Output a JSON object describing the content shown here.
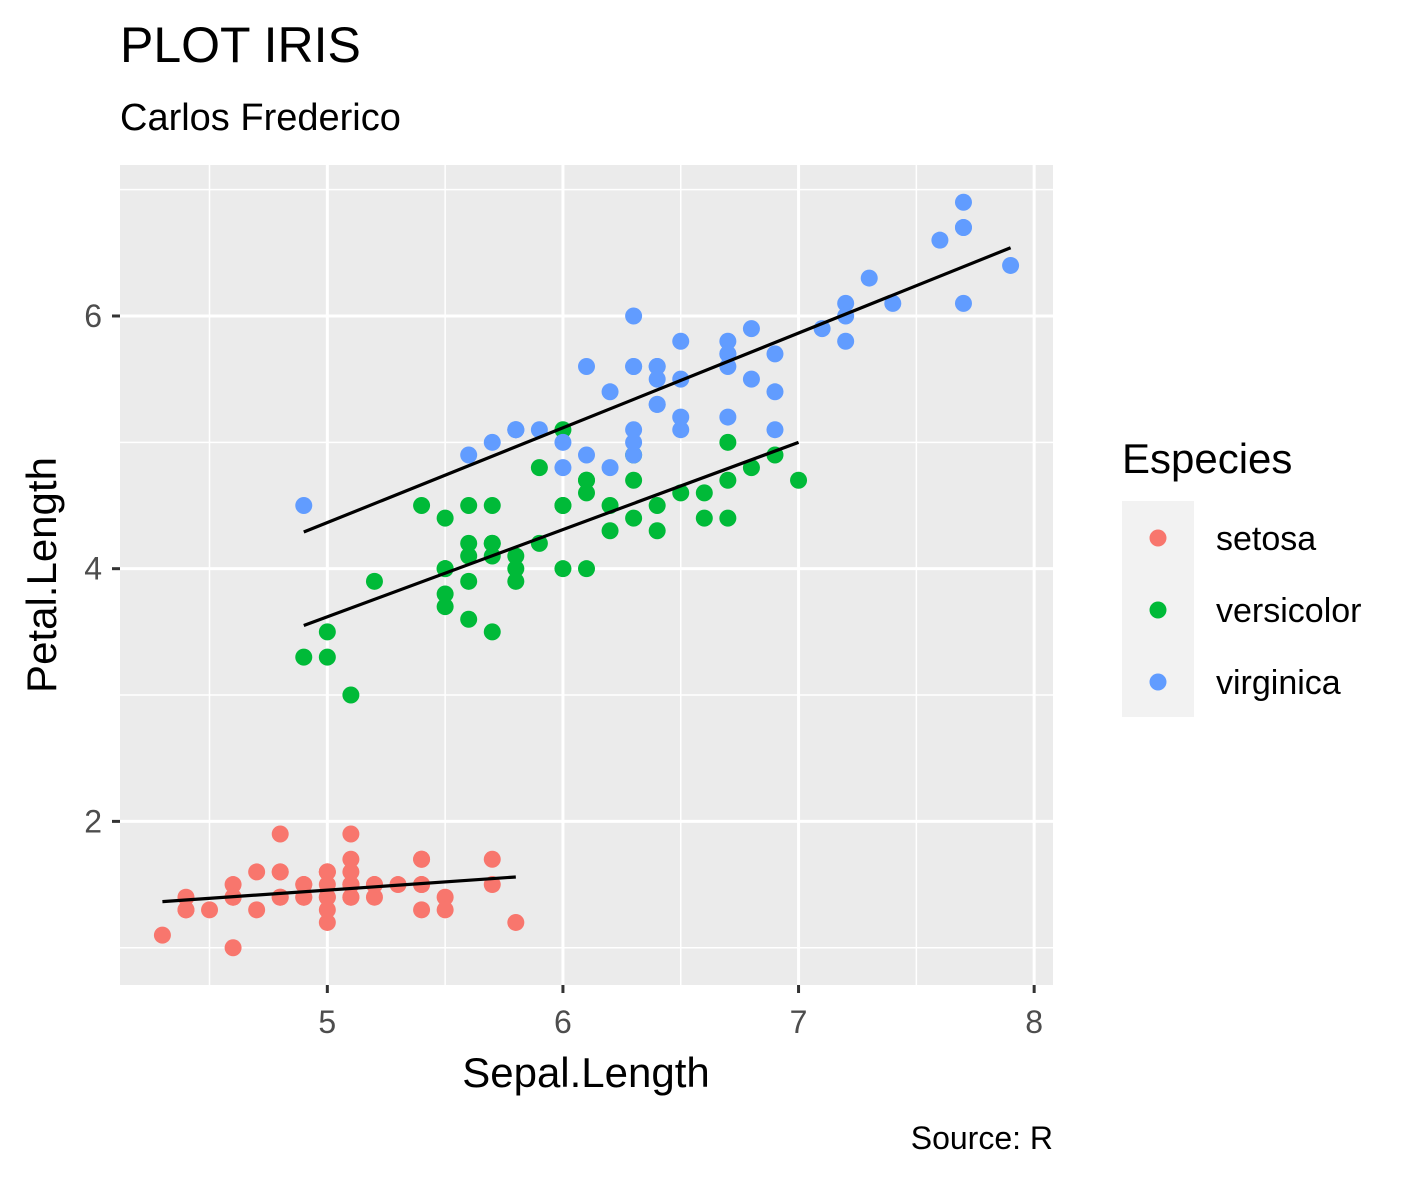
{
  "chart_data": {
    "type": "scatter",
    "title": "PLOT IRIS",
    "subtitle": "Carlos Frederico",
    "caption": "Source: R",
    "xlabel": "Sepal.Length",
    "ylabel": "Petal.Length",
    "xlim": [
      4.12,
      8.08
    ],
    "ylim": [
      0.705,
      7.195
    ],
    "x_ticks": [
      5,
      6,
      7,
      8
    ],
    "y_ticks": [
      2,
      4,
      6
    ],
    "x_minor": [
      4.5,
      5.5,
      6.5,
      7.5
    ],
    "y_minor": [
      1,
      3,
      5,
      7
    ],
    "grid": true,
    "panel_background": "#ebebeb",
    "legend": {
      "title": "Especies",
      "position": "right"
    },
    "series": [
      {
        "name": "setosa",
        "color": "#F8766D",
        "x": [
          5.1,
          4.9,
          4.7,
          4.6,
          5.0,
          5.4,
          4.6,
          5.0,
          4.4,
          4.9,
          5.4,
          4.8,
          4.8,
          4.3,
          5.8,
          5.7,
          5.4,
          5.1,
          5.7,
          5.1,
          5.4,
          5.1,
          4.6,
          5.1,
          4.8,
          5.0,
          5.0,
          5.2,
          5.2,
          4.7,
          4.8,
          5.4,
          5.2,
          5.5,
          4.9,
          5.0,
          5.5,
          4.9,
          4.4,
          5.1,
          5.0,
          4.5,
          4.4,
          5.0,
          5.1,
          4.8,
          5.1,
          4.6,
          5.3,
          5.0
        ],
        "y": [
          1.4,
          1.4,
          1.3,
          1.5,
          1.4,
          1.7,
          1.4,
          1.5,
          1.4,
          1.5,
          1.5,
          1.6,
          1.4,
          1.1,
          1.2,
          1.5,
          1.3,
          1.4,
          1.7,
          1.5,
          1.7,
          1.5,
          1.0,
          1.7,
          1.9,
          1.6,
          1.6,
          1.5,
          1.4,
          1.6,
          1.6,
          1.5,
          1.5,
          1.4,
          1.5,
          1.2,
          1.3,
          1.4,
          1.3,
          1.5,
          1.3,
          1.3,
          1.3,
          1.6,
          1.9,
          1.4,
          1.6,
          1.4,
          1.5,
          1.4
        ],
        "trend": {
          "x": [
            4.3,
            5.8
          ],
          "y": [
            1.365,
            1.56
          ]
        }
      },
      {
        "name": "versicolor",
        "color": "#00BA38",
        "x": [
          7.0,
          6.4,
          6.9,
          5.5,
          6.5,
          5.7,
          6.3,
          4.9,
          6.6,
          5.2,
          5.0,
          5.9,
          6.0,
          6.1,
          5.6,
          6.7,
          5.6,
          5.8,
          6.2,
          5.6,
          5.9,
          6.1,
          6.3,
          6.1,
          6.4,
          6.6,
          6.8,
          6.7,
          6.0,
          5.7,
          5.5,
          5.5,
          5.8,
          6.0,
          5.4,
          6.0,
          6.7,
          6.3,
          5.6,
          5.5,
          5.5,
          6.1,
          5.8,
          5.0,
          5.6,
          5.7,
          5.7,
          6.2,
          5.1,
          5.7
        ],
        "y": [
          4.7,
          4.5,
          4.9,
          4.0,
          4.6,
          4.5,
          4.7,
          3.3,
          4.6,
          3.9,
          3.5,
          4.2,
          4.0,
          4.7,
          3.6,
          4.4,
          4.5,
          4.1,
          4.5,
          3.9,
          4.8,
          4.0,
          4.9,
          4.7,
          4.3,
          4.4,
          4.8,
          5.0,
          4.5,
          3.5,
          3.8,
          3.7,
          3.9,
          5.1,
          4.5,
          4.5,
          4.7,
          4.4,
          4.1,
          4.0,
          4.4,
          4.6,
          4.0,
          3.3,
          4.2,
          4.2,
          4.2,
          4.3,
          3.0,
          4.1
        ],
        "trend": {
          "x": [
            4.9,
            7.0
          ],
          "y": [
            3.55,
            5.0
          ]
        }
      },
      {
        "name": "virginica",
        "color": "#619CFF",
        "x": [
          6.3,
          5.8,
          7.1,
          6.3,
          6.5,
          7.6,
          4.9,
          7.3,
          6.7,
          7.2,
          6.5,
          6.4,
          6.8,
          5.7,
          5.8,
          6.4,
          6.5,
          7.7,
          7.7,
          6.0,
          6.9,
          5.6,
          7.7,
          6.3,
          6.7,
          7.2,
          6.2,
          6.1,
          6.4,
          7.2,
          7.4,
          7.9,
          6.4,
          6.3,
          6.1,
          7.7,
          6.3,
          6.4,
          6.0,
          6.9,
          6.7,
          6.9,
          5.8,
          6.8,
          6.7,
          6.7,
          6.3,
          6.5,
          6.2,
          5.9
        ],
        "y": [
          6.0,
          5.1,
          5.9,
          5.6,
          5.8,
          6.6,
          4.5,
          6.3,
          5.8,
          6.1,
          5.1,
          5.3,
          5.5,
          5.0,
          5.1,
          5.3,
          5.5,
          6.7,
          6.9,
          5.0,
          5.7,
          4.9,
          6.7,
          4.9,
          5.7,
          6.0,
          4.8,
          4.9,
          5.6,
          5.8,
          6.1,
          6.4,
          5.6,
          5.1,
          5.6,
          6.1,
          5.6,
          5.5,
          4.8,
          5.4,
          5.6,
          5.1,
          5.1,
          5.9,
          5.7,
          5.2,
          5.0,
          5.2,
          5.4,
          5.1
        ],
        "trend": {
          "x": [
            4.9,
            7.9
          ],
          "y": [
            4.29,
            6.54
          ]
        }
      }
    ]
  }
}
